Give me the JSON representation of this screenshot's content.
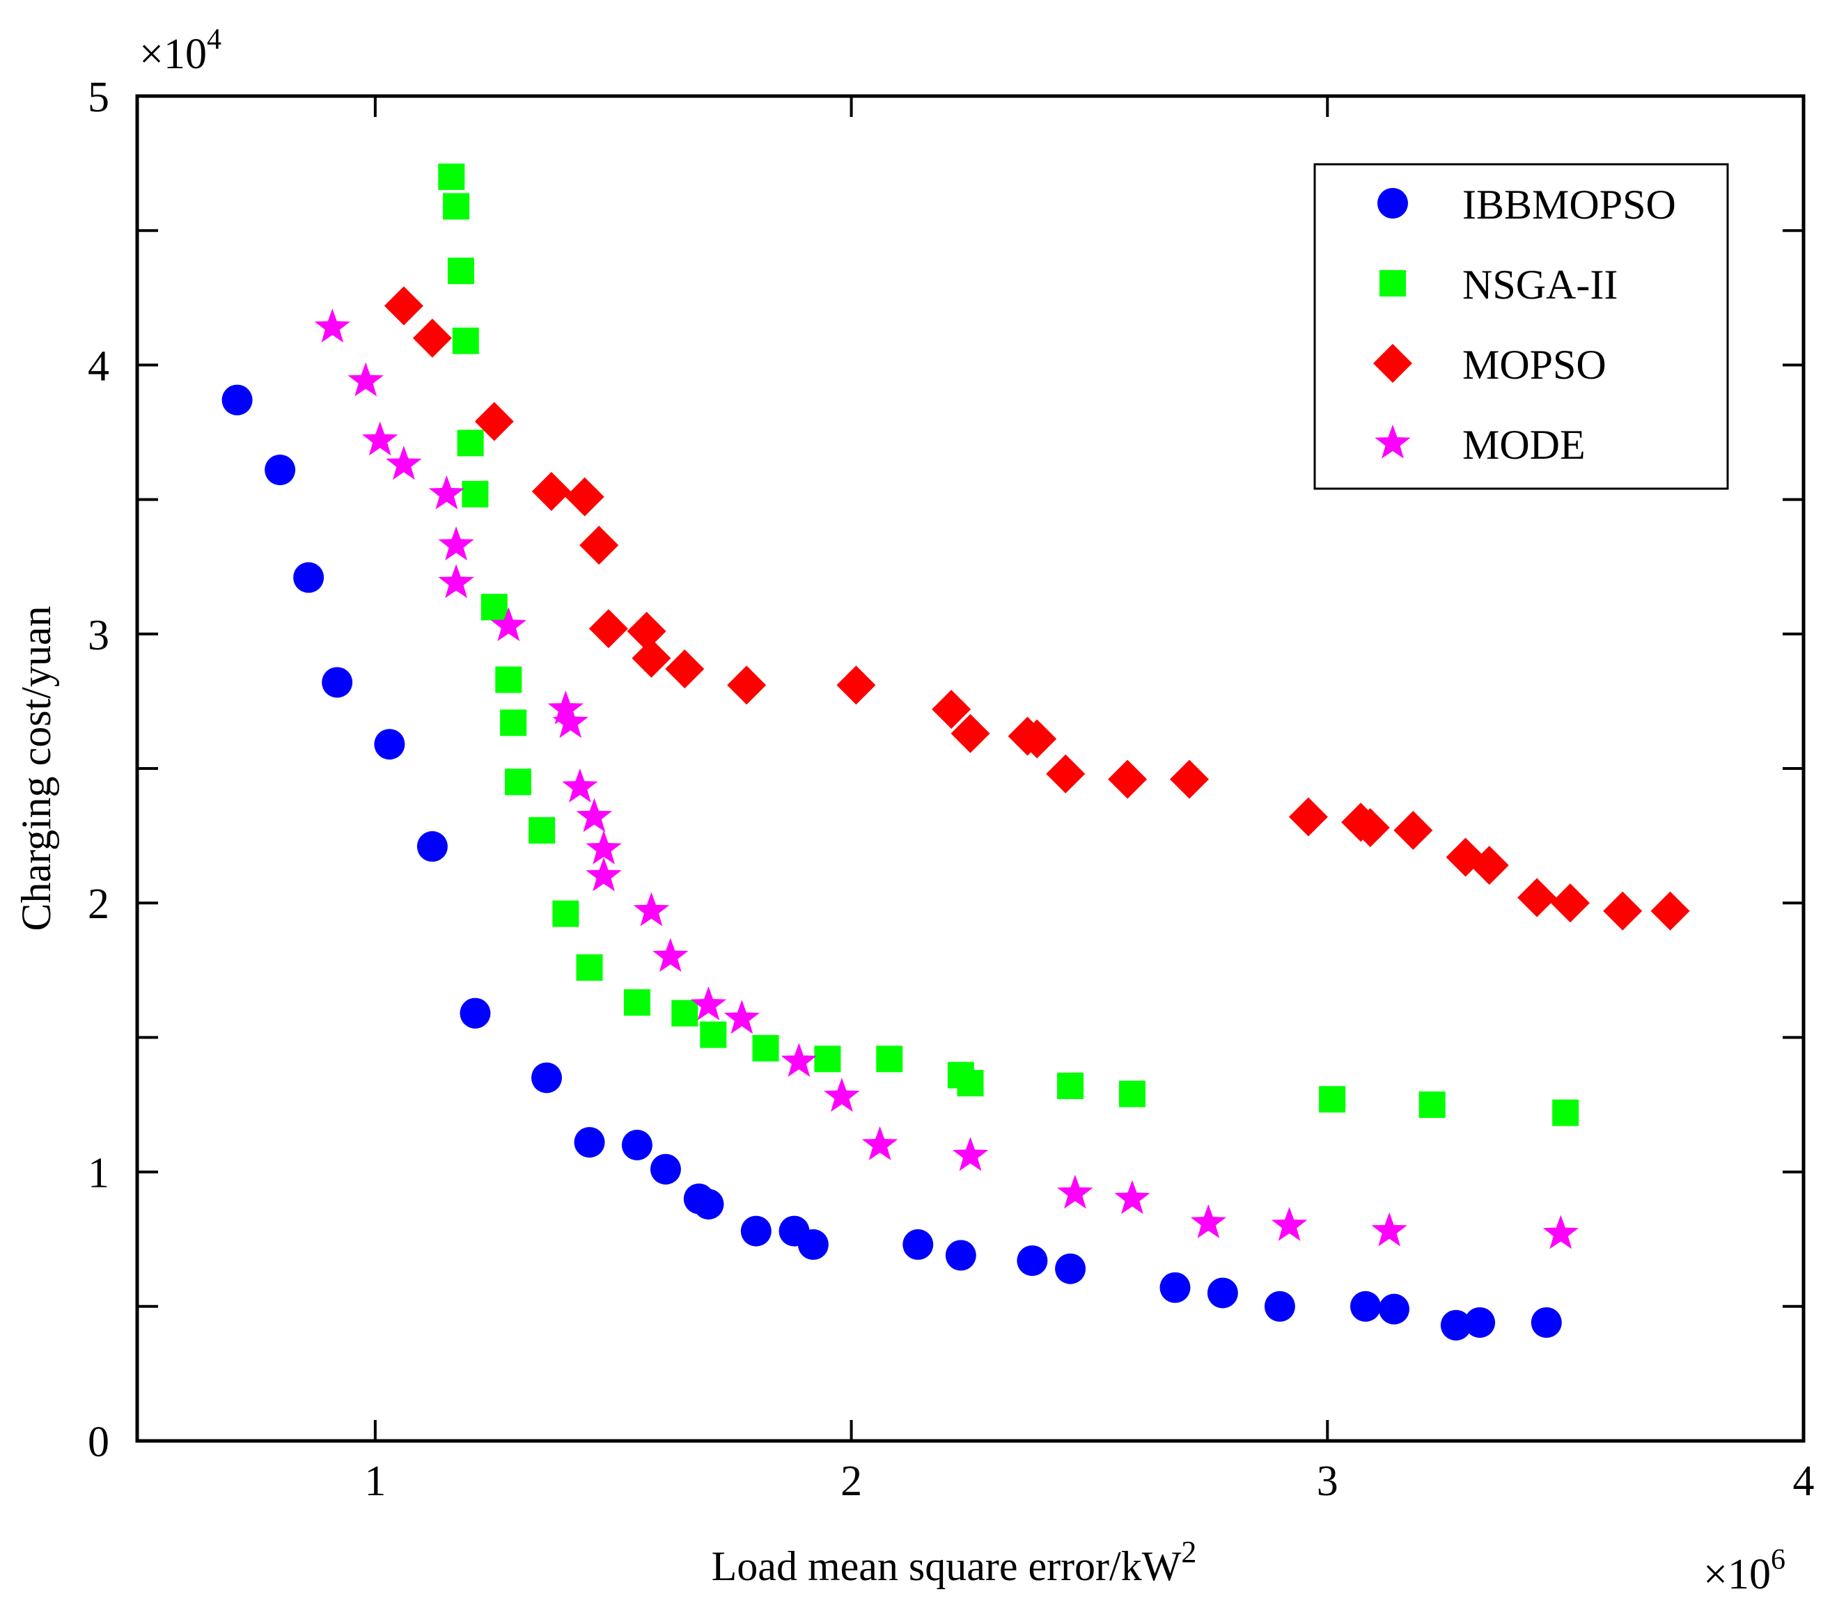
{
  "chart_data": {
    "type": "scatter",
    "title": "",
    "xlabel": "Load mean square error/kW",
    "xlabel_superscript": "2",
    "ylabel": "Charging cost/yuan",
    "x_multiplier": "×10",
    "x_multiplier_exp": "6",
    "y_multiplier": "×10",
    "y_multiplier_exp": "4",
    "xlim": [
      0.5,
      4.0
    ],
    "ylim": [
      0,
      5
    ],
    "x_ticks": [
      1,
      2,
      3,
      4
    ],
    "x_tick_labels": [
      "1",
      "2",
      "3",
      "4"
    ],
    "y_ticks": [
      0,
      1,
      2,
      3,
      4,
      5
    ],
    "y_tick_labels": [
      "0",
      "1",
      "2",
      "3",
      "4",
      "5"
    ],
    "grid": false,
    "legend_position": "top-right",
    "series": [
      {
        "name": "IBBMOPSO",
        "marker": "circle",
        "color": "#0000ff",
        "x": [
          0.71,
          0.8,
          0.86,
          0.92,
          1.03,
          1.12,
          1.21,
          1.36,
          1.45,
          1.55,
          1.61,
          1.68,
          1.7,
          1.8,
          1.88,
          1.92,
          2.14,
          2.23,
          2.38,
          2.46,
          2.68,
          2.78,
          2.9,
          3.08,
          3.14,
          3.27,
          3.32,
          3.46
        ],
        "y": [
          3.87,
          3.61,
          3.21,
          2.82,
          2.59,
          2.21,
          1.59,
          1.35,
          1.11,
          1.1,
          1.01,
          0.9,
          0.88,
          0.78,
          0.78,
          0.73,
          0.73,
          0.69,
          0.67,
          0.64,
          0.57,
          0.55,
          0.5,
          0.5,
          0.49,
          0.43,
          0.44,
          0.44
        ]
      },
      {
        "name": "NSGA-II",
        "marker": "square",
        "color": "#00ff00",
        "x": [
          1.16,
          1.17,
          1.18,
          1.19,
          1.2,
          1.21,
          1.25,
          1.28,
          1.29,
          1.3,
          1.35,
          1.4,
          1.45,
          1.55,
          1.65,
          1.71,
          1.82,
          1.95,
          2.08,
          2.23,
          2.25,
          2.46,
          2.59,
          3.01,
          3.22,
          3.5
        ],
        "y": [
          4.7,
          4.59,
          4.35,
          4.09,
          3.71,
          3.52,
          3.1,
          2.83,
          2.67,
          2.45,
          2.27,
          1.96,
          1.76,
          1.63,
          1.59,
          1.51,
          1.46,
          1.42,
          1.42,
          1.36,
          1.33,
          1.32,
          1.29,
          1.27,
          1.25,
          1.22
        ]
      },
      {
        "name": "MOPSO",
        "marker": "diamond",
        "color": "#ff0000",
        "x": [
          1.06,
          1.12,
          1.25,
          1.37,
          1.44,
          1.47,
          1.49,
          1.57,
          1.58,
          1.65,
          1.78,
          2.01,
          2.21,
          2.25,
          2.37,
          2.39,
          2.45,
          2.58,
          2.71,
          2.96,
          3.07,
          3.09,
          3.18,
          3.29,
          3.34,
          3.44,
          3.51,
          3.62,
          3.72
        ],
        "y": [
          4.22,
          4.1,
          3.79,
          3.53,
          3.51,
          3.33,
          3.02,
          3.01,
          2.91,
          2.87,
          2.81,
          2.81,
          2.72,
          2.63,
          2.62,
          2.61,
          2.48,
          2.46,
          2.46,
          2.32,
          2.3,
          2.28,
          2.27,
          2.17,
          2.14,
          2.02,
          2.0,
          1.97,
          1.97
        ]
      },
      {
        "name": "MODE",
        "marker": "star",
        "color": "#ff00ff",
        "x": [
          0.91,
          0.98,
          1.01,
          1.06,
          1.15,
          1.17,
          1.17,
          1.28,
          1.4,
          1.41,
          1.43,
          1.46,
          1.48,
          1.48,
          1.58,
          1.62,
          1.7,
          1.77,
          1.89,
          1.98,
          2.06,
          2.25,
          2.47,
          2.59,
          2.75,
          2.92,
          3.13,
          3.49
        ],
        "y": [
          4.14,
          3.94,
          3.72,
          3.63,
          3.52,
          3.33,
          3.19,
          3.03,
          2.72,
          2.67,
          2.43,
          2.32,
          2.2,
          2.1,
          1.97,
          1.8,
          1.62,
          1.57,
          1.41,
          1.28,
          1.1,
          1.06,
          0.92,
          0.9,
          0.81,
          0.8,
          0.78,
          0.77
        ]
      }
    ]
  }
}
